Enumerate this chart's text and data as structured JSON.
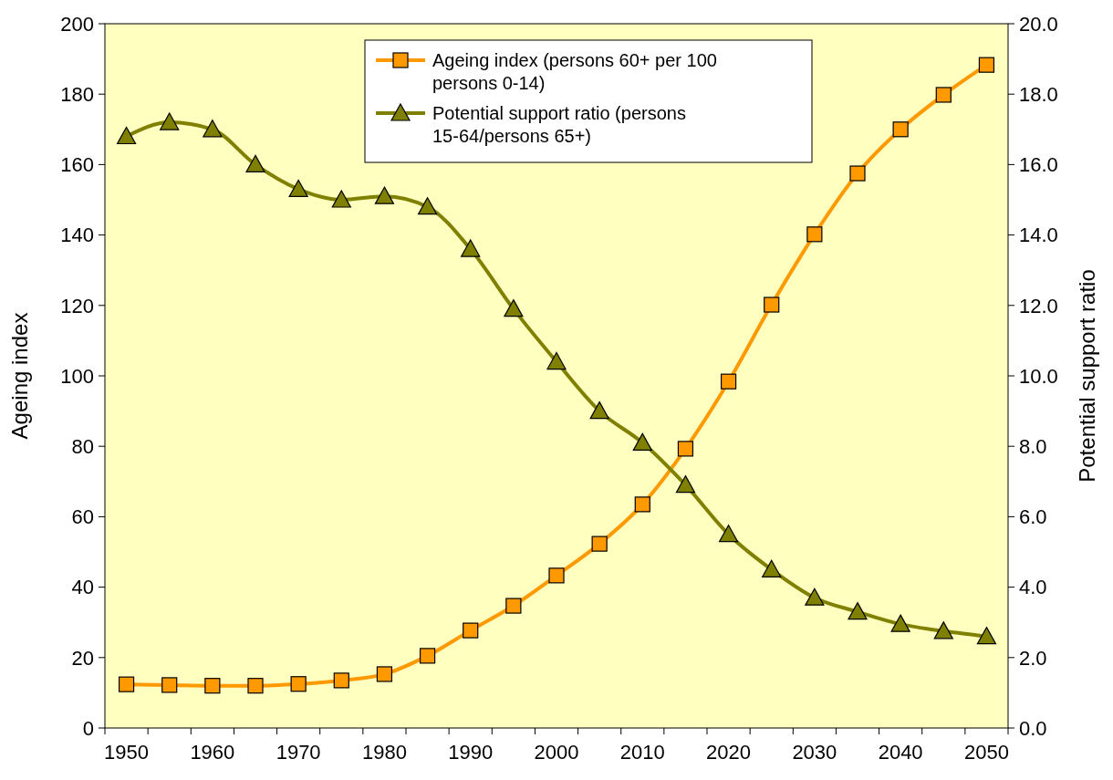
{
  "chart_data": {
    "type": "line",
    "categories": [
      "1950",
      null,
      "1960",
      null,
      "1970",
      null,
      "1980",
      null,
      "1990",
      null,
      "2000",
      null,
      "2010",
      null,
      "2020",
      null,
      "2030",
      null,
      "2040",
      null,
      "2050"
    ],
    "series": [
      {
        "name": "Ageing index (persons 60+ per 100 persons 0-14)",
        "color": "#ff9900",
        "marker": "square",
        "values": [
          12.4,
          12.2,
          12,
          12,
          12.5,
          13.5,
          15.3,
          20.5,
          27.7,
          34.7,
          43.3,
          52.3,
          63.5,
          79.3,
          98.4,
          120.2,
          140.2,
          157.5,
          170,
          179.8,
          188.3
        ]
      },
      {
        "name": "Potential support ratio (persons 15-64/persons 65+)",
        "color": "#808000",
        "marker": "triangle",
        "axis": "y2",
        "values": [
          16.8,
          17.2,
          17.0,
          16.0,
          15.3,
          15.0,
          15.1,
          14.8,
          13.6,
          11.9,
          10.4,
          9.0,
          8.1,
          6.9,
          5.5,
          4.5,
          3.7,
          3.3,
          2.95,
          2.75,
          2.6
        ]
      }
    ],
    "ylabel": "Ageing index",
    "y2label": "Potential support ratio",
    "ylim": [
      0,
      200
    ],
    "yticks": [
      0,
      20,
      40,
      60,
      80,
      100,
      120,
      140,
      160,
      180,
      200
    ],
    "y2lim": [
      0,
      20
    ],
    "y2ticks": [
      {
        "value": 0,
        "label": "0.0"
      },
      {
        "value": 2,
        "label": "2.0"
      },
      {
        "value": 4,
        "label": "4.0"
      },
      {
        "value": 6,
        "label": "6.0"
      },
      {
        "value": 8,
        "label": "8.0"
      },
      {
        "value": 10,
        "label": "10.0"
      },
      {
        "value": 12,
        "label": "12.0"
      },
      {
        "value": 14,
        "label": "14.0"
      },
      {
        "value": 16,
        "label": "16.0"
      },
      {
        "value": 18,
        "label": "18.0"
      },
      {
        "value": 20,
        "label": "20.0"
      }
    ],
    "legend": "top",
    "grid": false,
    "line_style": "solid"
  }
}
